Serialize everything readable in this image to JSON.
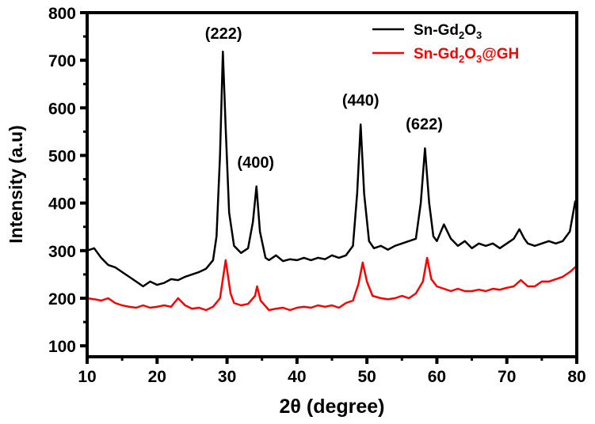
{
  "chart_data": {
    "type": "line",
    "xlabel": "2θ (degree)",
    "ylabel": "Intensity (a.u)",
    "xlim": [
      10,
      80
    ],
    "ylim": [
      77,
      800
    ],
    "xticks": [
      10,
      20,
      30,
      40,
      50,
      60,
      70,
      80
    ],
    "yticks": [
      100,
      200,
      300,
      400,
      500,
      600,
      700,
      800
    ],
    "grid": false,
    "legend_position": "top-right",
    "series": [
      {
        "name": "Sn-Gd2O3",
        "color": "#000000",
        "x": [
          10,
          11,
          12,
          13,
          14,
          15,
          16,
          17,
          18,
          19,
          20,
          21,
          22,
          23,
          24,
          25,
          26,
          27,
          28,
          28.5,
          29,
          29.4,
          29.8,
          30.3,
          31,
          32,
          33,
          33.7,
          34.2,
          34.7,
          35.5,
          36,
          37,
          38,
          39,
          40,
          41,
          42,
          43,
          44,
          45,
          46,
          47,
          48,
          48.6,
          49.1,
          49.6,
          50.3,
          51,
          52,
          53,
          54,
          55,
          56,
          57,
          57.7,
          58.3,
          58.9,
          59.5,
          60,
          61,
          62,
          63,
          64,
          65,
          66,
          67,
          68,
          69,
          70,
          71,
          71.8,
          72.5,
          73,
          74,
          75,
          76,
          77,
          78,
          79,
          79.8
        ],
        "y": [
          300,
          305,
          285,
          270,
          265,
          255,
          245,
          235,
          225,
          235,
          228,
          232,
          240,
          238,
          245,
          250,
          255,
          262,
          280,
          330,
          500,
          718,
          560,
          380,
          310,
          295,
          305,
          360,
          435,
          340,
          285,
          280,
          290,
          278,
          282,
          280,
          285,
          280,
          285,
          282,
          290,
          285,
          290,
          310,
          420,
          565,
          420,
          320,
          305,
          310,
          302,
          310,
          315,
          320,
          325,
          400,
          515,
          400,
          330,
          320,
          355,
          325,
          310,
          320,
          305,
          315,
          310,
          315,
          305,
          315,
          325,
          345,
          325,
          315,
          310,
          315,
          320,
          315,
          320,
          340,
          405
        ]
      },
      {
        "name": "Sn-Gd2O3@GH",
        "color": "#ff0000",
        "x": [
          10,
          11,
          12,
          13,
          14,
          15,
          16,
          17,
          18,
          19,
          20,
          21,
          22,
          23,
          24,
          25,
          26,
          27,
          28,
          29,
          29.8,
          30.5,
          31,
          32,
          33,
          34,
          34.3,
          34.8,
          36,
          37,
          38,
          39,
          40,
          41,
          42,
          43,
          44,
          45,
          46,
          47,
          48,
          48.8,
          49.4,
          50,
          50.8,
          52,
          53,
          54,
          55,
          56,
          57,
          58,
          58.6,
          59.2,
          60,
          61,
          62,
          63,
          64,
          65,
          66,
          67,
          68,
          69,
          70,
          71,
          72,
          73,
          74,
          75,
          76,
          77,
          78,
          79,
          80
        ],
        "y": [
          200,
          198,
          195,
          200,
          190,
          185,
          182,
          180,
          185,
          180,
          182,
          185,
          182,
          200,
          185,
          178,
          180,
          175,
          182,
          200,
          280,
          210,
          190,
          185,
          188,
          205,
          225,
          195,
          175,
          178,
          180,
          175,
          180,
          182,
          180,
          185,
          182,
          185,
          180,
          190,
          195,
          230,
          275,
          235,
          205,
          200,
          198,
          200,
          205,
          200,
          210,
          235,
          285,
          240,
          225,
          220,
          215,
          220,
          215,
          215,
          218,
          215,
          220,
          218,
          222,
          225,
          238,
          225,
          225,
          235,
          235,
          240,
          245,
          255,
          268
        ]
      }
    ],
    "annotations": [
      {
        "text": "(222)",
        "x": 29.5,
        "y": 745
      },
      {
        "text": "(400)",
        "x": 34.1,
        "y": 474
      },
      {
        "text": "(440)",
        "x": 49.1,
        "y": 605
      },
      {
        "text": "(622)",
        "x": 58.2,
        "y": 555
      }
    ],
    "legend": [
      {
        "base": "Sn-Gd",
        "sub1": "2",
        "mid": "O",
        "sub2": "3",
        "tail": "",
        "color": "#000000"
      },
      {
        "base": "Sn-Gd",
        "sub1": "2",
        "mid": "O",
        "sub2": "3",
        "tail": "@GH",
        "color": "#ff0000"
      }
    ]
  }
}
